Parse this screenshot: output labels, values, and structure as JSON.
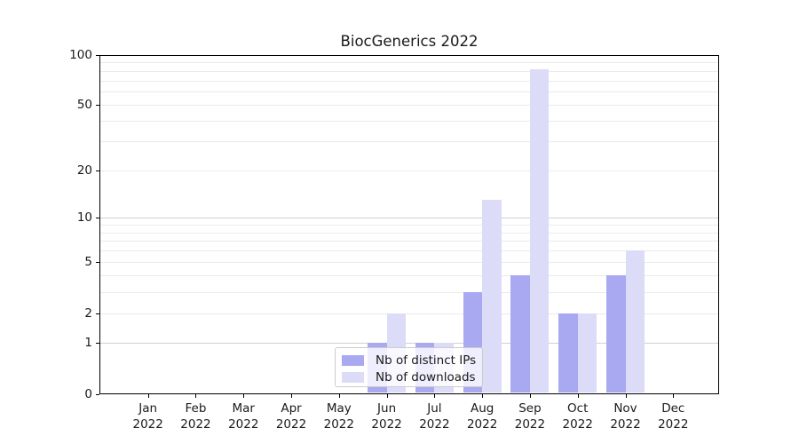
{
  "title": "BiocGenerics 2022",
  "chart_data": {
    "type": "bar",
    "title": "BiocGenerics 2022",
    "categories": [
      "Jan 2022",
      "Feb 2022",
      "Mar 2022",
      "Apr 2022",
      "May 2022",
      "Jun 2022",
      "Jul 2022",
      "Aug 2022",
      "Sep 2022",
      "Oct 2022",
      "Nov 2022",
      "Dec 2022"
    ],
    "series": [
      {
        "name": "Nb of distinct IPs",
        "color": "#a9a9f2",
        "values": [
          0,
          0,
          0,
          0,
          0,
          1,
          1,
          3,
          4,
          2,
          4,
          0
        ]
      },
      {
        "name": "Nb of downloads",
        "color": "#dcdcf8",
        "values": [
          0,
          0,
          0,
          0,
          0,
          2,
          1,
          13,
          82,
          2,
          6,
          0
        ]
      }
    ],
    "ylabel": "",
    "xlabel": "",
    "yscale": "log1p",
    "ylim": [
      0,
      100
    ],
    "yticks": [
      0,
      1,
      2,
      5,
      10,
      20,
      50,
      100
    ],
    "minor_gridlines": [
      2,
      3,
      4,
      5,
      6,
      7,
      8,
      9,
      20,
      30,
      40,
      50,
      60,
      70,
      80,
      90
    ],
    "major_gridlines": [
      1,
      10,
      100
    ],
    "grid": "horizontal",
    "legend_position": "lower center"
  },
  "legend": {
    "items": [
      {
        "label": "Nb of distinct IPs",
        "color": "#a9a9f2"
      },
      {
        "label": "Nb of downloads",
        "color": "#dcdcf8"
      }
    ]
  },
  "colors": {
    "background": "#ffffff",
    "spine": "#000000",
    "major_grid": "rgba(0,0,0,0.18)",
    "minor_grid": "rgba(0,0,0,0.08)",
    "text": "#1a1a1a"
  }
}
